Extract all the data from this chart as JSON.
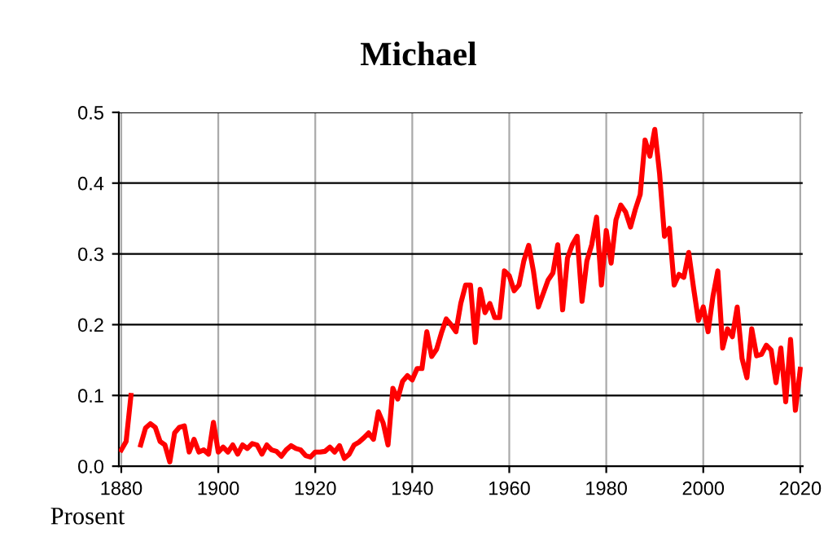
{
  "chart_data": {
    "type": "line",
    "title": "Michael",
    "annotations": [
      "Prosent"
    ],
    "x": [
      1880,
      1881,
      1882,
      1883,
      1884,
      1885,
      1886,
      1887,
      1888,
      1889,
      1890,
      1891,
      1892,
      1893,
      1894,
      1895,
      1896,
      1897,
      1898,
      1899,
      1900,
      1901,
      1902,
      1903,
      1904,
      1905,
      1906,
      1907,
      1908,
      1909,
      1910,
      1911,
      1912,
      1913,
      1914,
      1915,
      1916,
      1917,
      1918,
      1919,
      1920,
      1921,
      1922,
      1923,
      1924,
      1925,
      1926,
      1927,
      1928,
      1929,
      1930,
      1931,
      1932,
      1933,
      1934,
      1935,
      1936,
      1937,
      1938,
      1939,
      1940,
      1941,
      1942,
      1943,
      1944,
      1945,
      1946,
      1947,
      1948,
      1949,
      1950,
      1951,
      1952,
      1953,
      1954,
      1955,
      1956,
      1957,
      1958,
      1959,
      1960,
      1961,
      1962,
      1963,
      1964,
      1965,
      1966,
      1967,
      1968,
      1969,
      1970,
      1971,
      1972,
      1973,
      1974,
      1975,
      1976,
      1977,
      1978,
      1979,
      1980,
      1981,
      1982,
      1983,
      1984,
      1985,
      1986,
      1987,
      1988,
      1989,
      1990,
      1991,
      1992,
      1993,
      1994,
      1995,
      1996,
      1997,
      1998,
      1999,
      2000,
      2001,
      2002,
      2003,
      2004,
      2005,
      2006,
      2007,
      2008,
      2009,
      2010,
      2011,
      2012,
      2013,
      2014,
      2015,
      2016,
      2017,
      2018,
      2019,
      2020
    ],
    "series": [
      {
        "color": "#ff0000",
        "values": [
          0.023,
          0.035,
          0.1,
          null,
          0.03,
          0.054,
          0.06,
          0.055,
          0.035,
          0.03,
          0.006,
          0.047,
          0.055,
          0.057,
          0.02,
          0.038,
          0.02,
          0.023,
          0.017,
          0.062,
          0.02,
          0.027,
          0.02,
          0.03,
          0.017,
          0.03,
          0.025,
          0.032,
          0.03,
          0.017,
          0.03,
          0.023,
          0.021,
          0.014,
          0.023,
          0.029,
          0.025,
          0.023,
          0.015,
          0.013,
          0.02,
          0.02,
          0.021,
          0.027,
          0.02,
          0.029,
          0.011,
          0.017,
          0.03,
          0.034,
          0.04,
          0.047,
          0.038,
          0.077,
          0.061,
          0.03,
          0.11,
          0.095,
          0.12,
          0.128,
          0.122,
          0.138,
          0.138,
          0.19,
          0.155,
          0.165,
          0.188,
          0.208,
          0.2,
          0.19,
          0.23,
          0.256,
          0.256,
          0.175,
          0.25,
          0.217,
          0.23,
          0.21,
          0.21,
          0.276,
          0.269,
          0.248,
          0.256,
          0.29,
          0.312,
          0.275,
          0.225,
          0.244,
          0.263,
          0.273,
          0.313,
          0.221,
          0.294,
          0.313,
          0.325,
          0.233,
          0.29,
          0.313,
          0.352,
          0.256,
          0.333,
          0.287,
          0.348,
          0.369,
          0.359,
          0.338,
          0.363,
          0.384,
          0.461,
          0.438,
          0.476,
          0.413,
          0.325,
          0.336,
          0.256,
          0.271,
          0.267,
          0.302,
          0.252,
          0.206,
          0.225,
          0.19,
          0.24,
          0.276,
          0.167,
          0.194,
          0.183,
          0.225,
          0.152,
          0.125,
          0.194,
          0.156,
          0.158,
          0.171,
          0.164,
          0.118,
          0.167,
          0.091,
          0.179,
          0.079,
          0.137
        ]
      }
    ],
    "xlim": [
      1879.5,
      2020.5
    ],
    "xticks": [
      1880,
      1900,
      1920,
      1940,
      1960,
      1980,
      2000,
      2020
    ],
    "ylim": [
      0,
      0.5
    ],
    "yticks": [
      {
        "value": 0,
        "label": "0.0"
      },
      {
        "value": 0.1,
        "label": "0.1"
      },
      {
        "value": 0.2,
        "label": "0.2"
      },
      {
        "value": 0.3,
        "label": "0.3"
      },
      {
        "value": 0.4,
        "label": "0.4"
      },
      {
        "value": 0.5,
        "label": "0.5"
      }
    ],
    "grid": true,
    "legend": false,
    "marker": "none",
    "line_style": "solid"
  }
}
